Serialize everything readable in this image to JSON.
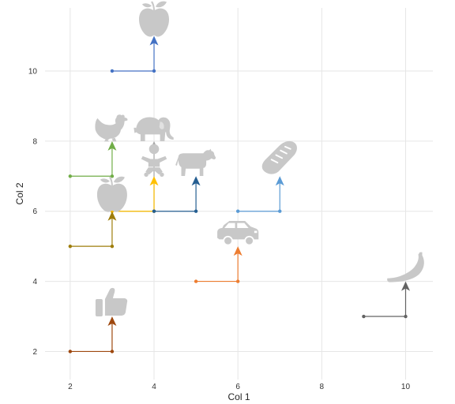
{
  "chart_data": {
    "type": "scatter",
    "title": "",
    "xlabel": "Col 1",
    "ylabel": "Col 2",
    "xlim": [
      1.4,
      10.65
    ],
    "ylim": [
      1.2,
      11.8
    ],
    "xticks": [
      2,
      4,
      6,
      8,
      10
    ],
    "yticks": [
      2,
      4,
      6,
      8,
      10
    ],
    "x_tick_labels": [
      "2",
      "4",
      "6",
      "8",
      "10"
    ],
    "y_tick_labels": [
      "2",
      "4",
      "6",
      "8",
      "10"
    ],
    "grid": true,
    "legend": "none",
    "series": [
      {
        "icon": "apple-icon",
        "color": "#4472c4",
        "start": [
          3,
          10
        ],
        "corner": [
          4,
          10
        ],
        "end": [
          4,
          11
        ]
      },
      {
        "icon": "chicken-icon",
        "color": "#70ad47",
        "start": [
          2,
          7
        ],
        "corner": [
          3,
          7
        ],
        "end": [
          3,
          8
        ]
      },
      {
        "icon": "elephant-icon",
        "color": "#a5a5a5",
        "start": [
          3,
          6
        ],
        "corner": [
          4,
          6
        ],
        "end": [
          4,
          8
        ]
      },
      {
        "icon": "baby-icon",
        "color": "#ffc000",
        "start": [
          3,
          6
        ],
        "corner": [
          4,
          6
        ],
        "end": [
          4,
          7
        ]
      },
      {
        "icon": "cow-icon",
        "color": "#255e91",
        "start": [
          4,
          6
        ],
        "corner": [
          5,
          6
        ],
        "end": [
          5,
          7
        ]
      },
      {
        "icon": "bread-icon",
        "color": "#5b9bd5",
        "start": [
          6,
          6
        ],
        "corner": [
          7,
          6
        ],
        "end": [
          7,
          7
        ]
      },
      {
        "icon": "apple-icon",
        "color": "#9e7d0a",
        "start": [
          2,
          5
        ],
        "corner": [
          3,
          5
        ],
        "end": [
          3,
          6
        ]
      },
      {
        "icon": "car-icon",
        "color": "#ed7d31",
        "start": [
          5,
          4
        ],
        "corner": [
          6,
          4
        ],
        "end": [
          6,
          5
        ]
      },
      {
        "icon": "banana-icon",
        "color": "#636363",
        "start": [
          9,
          3
        ],
        "corner": [
          10,
          3
        ],
        "end": [
          10,
          4
        ]
      },
      {
        "icon": "thumbs-up-icon",
        "color": "#9e480e",
        "start": [
          2,
          2
        ],
        "corner": [
          3,
          2
        ],
        "end": [
          3,
          3
        ]
      }
    ]
  }
}
